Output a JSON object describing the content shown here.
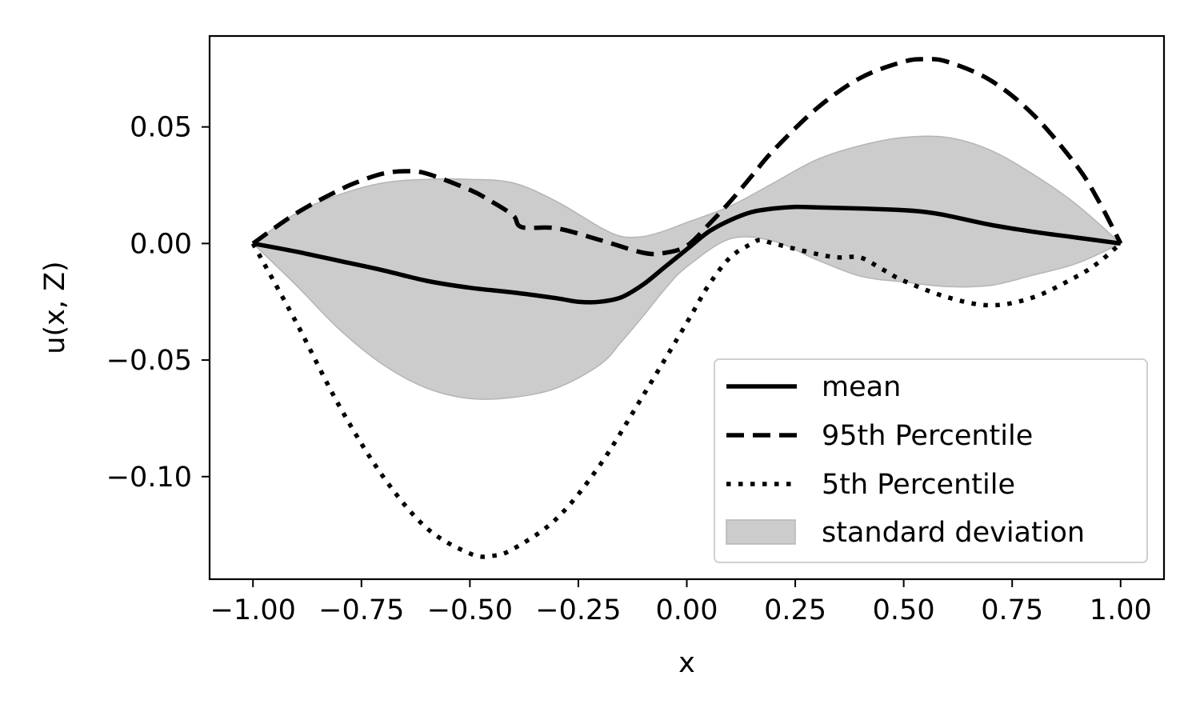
{
  "chart_data": {
    "type": "line",
    "title": "",
    "xlabel": "x",
    "ylabel": "u(x, Z)",
    "xlim": [
      -1.1,
      1.1
    ],
    "ylim": [
      -0.144,
      0.089
    ],
    "xticks": [
      -1.0,
      -0.75,
      -0.5,
      -0.25,
      0.0,
      0.25,
      0.5,
      0.75,
      1.0
    ],
    "xtick_labels": [
      "−1.00",
      "−0.75",
      "−0.50",
      "−0.25",
      "0.00",
      "0.25",
      "0.50",
      "0.75",
      "1.00"
    ],
    "yticks": [
      0.05,
      0.0,
      -0.05,
      -0.1
    ],
    "ytick_labels": [
      "0.05",
      "0.00",
      "−0.05",
      "−0.10"
    ],
    "grid": false,
    "legend_position": "lower-right",
    "series": [
      {
        "name": "mean",
        "style": "solid",
        "color": "#000000",
        "x": [
          -1.0,
          -0.9,
          -0.8,
          -0.7,
          -0.6,
          -0.5,
          -0.4,
          -0.3,
          -0.25,
          -0.2,
          -0.15,
          -0.1,
          -0.05,
          0.0,
          0.05,
          0.1,
          0.15,
          0.2,
          0.25,
          0.3,
          0.4,
          0.5,
          0.55,
          0.6,
          0.7,
          0.8,
          0.9,
          1.0
        ],
        "y": [
          0.0,
          -0.0035,
          -0.0075,
          -0.0115,
          -0.016,
          -0.019,
          -0.021,
          -0.0235,
          -0.025,
          -0.025,
          -0.023,
          -0.0175,
          -0.01,
          -0.0025,
          0.005,
          0.01,
          0.0135,
          0.015,
          0.0157,
          0.0155,
          0.015,
          0.0143,
          0.0135,
          0.012,
          0.008,
          0.005,
          0.0025,
          0.0
        ]
      },
      {
        "name": "95th Percentile",
        "style": "dashed",
        "color": "#000000",
        "x": [
          -1.0,
          -0.9,
          -0.8,
          -0.75,
          -0.7,
          -0.65,
          -0.6,
          -0.5,
          -0.45,
          -0.4,
          -0.38,
          -0.3,
          -0.2,
          -0.1,
          -0.05,
          0.0,
          0.05,
          0.1,
          0.15,
          0.2,
          0.3,
          0.4,
          0.5,
          0.55,
          0.6,
          0.7,
          0.8,
          0.9,
          0.95,
          1.0
        ],
        "y": [
          0.0,
          0.013,
          0.023,
          0.027,
          0.03,
          0.031,
          0.03,
          0.023,
          0.018,
          0.012,
          0.007,
          0.0065,
          0.0015,
          -0.004,
          -0.004,
          -0.001,
          0.008,
          0.018,
          0.029,
          0.04,
          0.058,
          0.071,
          0.078,
          0.079,
          0.078,
          0.07,
          0.055,
          0.033,
          0.018,
          0.0
        ]
      },
      {
        "name": "5th Percentile",
        "style": "dotted",
        "color": "#000000",
        "x": [
          -1.0,
          -0.9,
          -0.8,
          -0.7,
          -0.6,
          -0.5,
          -0.45,
          -0.4,
          -0.3,
          -0.2,
          -0.1,
          0.0,
          0.05,
          0.1,
          0.15,
          0.17,
          0.2,
          0.3,
          0.35,
          0.4,
          0.45,
          0.5,
          0.6,
          0.7,
          0.8,
          0.9,
          0.95,
          1.0
        ],
        "y": [
          0.0,
          -0.034,
          -0.07,
          -0.1,
          -0.122,
          -0.133,
          -0.134,
          -0.131,
          -0.118,
          -0.095,
          -0.065,
          -0.034,
          -0.018,
          -0.006,
          0.0,
          0.0015,
          0.0,
          -0.0045,
          -0.006,
          -0.006,
          -0.011,
          -0.016,
          -0.023,
          -0.0265,
          -0.023,
          -0.014,
          -0.008,
          0.0
        ]
      }
    ],
    "band": {
      "name": "standard deviation",
      "color": "#cccccc",
      "edge_color": "#b5b5b5",
      "x": [
        -1.0,
        -0.9,
        -0.8,
        -0.7,
        -0.6,
        -0.5,
        -0.4,
        -0.3,
        -0.2,
        -0.15,
        -0.1,
        -0.05,
        0.0,
        0.1,
        0.2,
        0.3,
        0.4,
        0.5,
        0.6,
        0.7,
        0.8,
        0.9,
        1.0
      ],
      "upper": [
        0.0,
        0.013,
        0.021,
        0.026,
        0.0275,
        0.0275,
        0.026,
        0.018,
        0.007,
        0.003,
        0.003,
        0.0055,
        0.009,
        0.016,
        0.026,
        0.036,
        0.042,
        0.0455,
        0.0455,
        0.04,
        0.0295,
        0.0165,
        0.0
      ],
      "lower": [
        0.0,
        -0.018,
        -0.037,
        -0.052,
        -0.062,
        -0.0665,
        -0.066,
        -0.062,
        -0.052,
        -0.042,
        -0.031,
        -0.0195,
        -0.01,
        0.002,
        0.001,
        -0.007,
        -0.014,
        -0.0165,
        -0.0185,
        -0.018,
        -0.0135,
        -0.0085,
        0.0
      ]
    }
  }
}
